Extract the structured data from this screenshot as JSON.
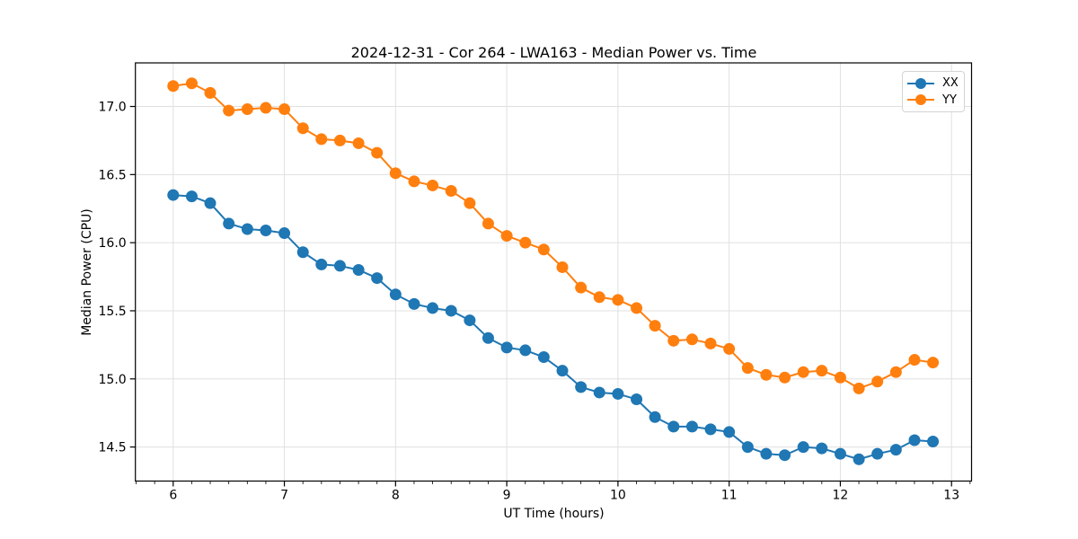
{
  "window": {
    "background": "#ffffff"
  },
  "chart_data": {
    "type": "line",
    "title": "2024-12-31 - Cor 264 - LWA163 - Median Power vs. Time",
    "xlabel": "UT Time (hours)",
    "ylabel": "Median Power (CPU)",
    "xlim": [
      5.66,
      13.18
    ],
    "ylim": [
      14.25,
      17.32
    ],
    "xticks": [
      6,
      7,
      8,
      9,
      10,
      11,
      12,
      13
    ],
    "yticks": [
      14.5,
      15.0,
      15.5,
      16.0,
      16.5,
      17.0
    ],
    "x_minor_step": 0.1666667,
    "grid": true,
    "legend_position": "upper right",
    "x": [
      6.0,
      6.167,
      6.333,
      6.5,
      6.667,
      6.833,
      7.0,
      7.167,
      7.333,
      7.5,
      7.667,
      7.833,
      8.0,
      8.167,
      8.333,
      8.5,
      8.667,
      8.833,
      9.0,
      9.167,
      9.333,
      9.5,
      9.667,
      9.833,
      10.0,
      10.167,
      10.333,
      10.5,
      10.667,
      10.833,
      11.0,
      11.167,
      11.333,
      11.5,
      11.667,
      11.833,
      12.0,
      12.167,
      12.333,
      12.5,
      12.667,
      12.833
    ],
    "series": [
      {
        "name": "XX",
        "color": "#1f77b4",
        "values": [
          16.35,
          16.34,
          16.29,
          16.14,
          16.1,
          16.09,
          16.07,
          15.93,
          15.84,
          15.83,
          15.8,
          15.74,
          15.62,
          15.55,
          15.52,
          15.5,
          15.43,
          15.3,
          15.23,
          15.21,
          15.16,
          15.06,
          14.94,
          14.9,
          14.89,
          14.85,
          14.72,
          14.65,
          14.65,
          14.63,
          14.61,
          14.5,
          14.45,
          14.44,
          14.5,
          14.49,
          14.45,
          14.41,
          14.45,
          14.48,
          14.55,
          14.54
        ]
      },
      {
        "name": "YY",
        "color": "#ff7f0e",
        "values": [
          17.15,
          17.17,
          17.1,
          16.97,
          16.98,
          16.99,
          16.98,
          16.84,
          16.76,
          16.75,
          16.73,
          16.66,
          16.51,
          16.45,
          16.42,
          16.38,
          16.29,
          16.14,
          16.05,
          16.0,
          15.95,
          15.82,
          15.67,
          15.6,
          15.58,
          15.52,
          15.39,
          15.28,
          15.29,
          15.26,
          15.22,
          15.08,
          15.03,
          15.01,
          15.05,
          15.06,
          15.01,
          14.93,
          14.98,
          15.05,
          15.14,
          15.12
        ]
      }
    ],
    "colors": {
      "grid": "#e0e0e0",
      "spine": "#000000",
      "tick": "#000000",
      "text": "#000000"
    }
  }
}
